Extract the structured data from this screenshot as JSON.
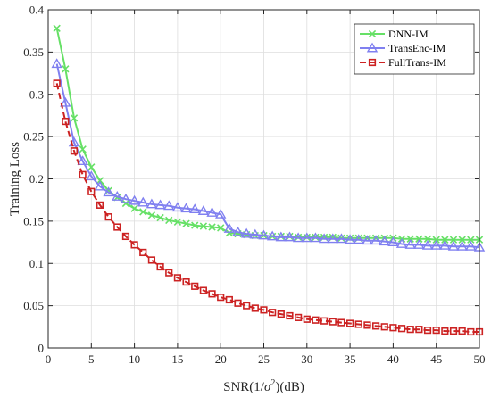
{
  "chart_data": {
    "type": "line",
    "xlabel": "SNR(1/σ²)(dB)",
    "ylabel": "Training Loss",
    "xlim": [
      0,
      50
    ],
    "ylim": [
      0,
      0.4
    ],
    "xticks": [
      0,
      5,
      10,
      15,
      20,
      25,
      30,
      35,
      40,
      45,
      50
    ],
    "yticks": [
      0,
      0.05,
      0.1,
      0.15,
      0.2,
      0.25,
      0.3,
      0.35,
      0.4
    ],
    "xtick_labels": [
      "0",
      "5",
      "10",
      "15",
      "20",
      "25",
      "30",
      "35",
      "40",
      "45",
      "50"
    ],
    "ytick_labels": [
      "0",
      "0.05",
      "0.1",
      "0.15",
      "0.2",
      "0.25",
      "0.3",
      "0.35",
      "0.4"
    ],
    "grid": true,
    "legend_position": "top-right",
    "x": [
      1,
      2,
      3,
      4,
      5,
      6,
      7,
      8,
      9,
      10,
      11,
      12,
      13,
      14,
      15,
      16,
      17,
      18,
      19,
      20,
      21,
      22,
      23,
      24,
      25,
      26,
      27,
      28,
      29,
      30,
      31,
      32,
      33,
      34,
      35,
      36,
      37,
      38,
      39,
      40,
      41,
      42,
      43,
      44,
      45,
      46,
      47,
      48,
      49,
      50
    ],
    "series": [
      {
        "name": "DNN-IM",
        "color": "#66e066",
        "marker": "x",
        "values": [
          0.378,
          0.33,
          0.272,
          0.235,
          0.214,
          0.198,
          0.186,
          0.178,
          0.171,
          0.165,
          0.161,
          0.157,
          0.154,
          0.151,
          0.149,
          0.147,
          0.145,
          0.144,
          0.143,
          0.142,
          0.136,
          0.135,
          0.134,
          0.133,
          0.133,
          0.132,
          0.132,
          0.132,
          0.131,
          0.131,
          0.131,
          0.131,
          0.131,
          0.13,
          0.13,
          0.13,
          0.13,
          0.13,
          0.13,
          0.13,
          0.129,
          0.129,
          0.129,
          0.129,
          0.128,
          0.128,
          0.128,
          0.128,
          0.128,
          0.128
        ]
      },
      {
        "name": "TransEnc-IM",
        "color": "#8080f0",
        "marker": "triangle",
        "values": [
          0.336,
          0.29,
          0.243,
          0.221,
          0.203,
          0.191,
          0.184,
          0.179,
          0.176,
          0.174,
          0.172,
          0.17,
          0.169,
          0.168,
          0.166,
          0.165,
          0.164,
          0.162,
          0.16,
          0.158,
          0.141,
          0.137,
          0.135,
          0.134,
          0.133,
          0.132,
          0.131,
          0.131,
          0.13,
          0.13,
          0.13,
          0.129,
          0.129,
          0.129,
          0.128,
          0.128,
          0.127,
          0.127,
          0.126,
          0.125,
          0.123,
          0.122,
          0.122,
          0.121,
          0.121,
          0.121,
          0.12,
          0.12,
          0.12,
          0.119
        ]
      },
      {
        "name": "FullTrans-IM",
        "color": "#cc2222",
        "marker": "square",
        "values": [
          0.313,
          0.268,
          0.233,
          0.205,
          0.185,
          0.169,
          0.155,
          0.143,
          0.132,
          0.122,
          0.113,
          0.104,
          0.096,
          0.089,
          0.083,
          0.078,
          0.073,
          0.068,
          0.064,
          0.06,
          0.057,
          0.053,
          0.05,
          0.047,
          0.045,
          0.042,
          0.04,
          0.038,
          0.036,
          0.034,
          0.033,
          0.032,
          0.031,
          0.03,
          0.029,
          0.028,
          0.027,
          0.026,
          0.025,
          0.024,
          0.023,
          0.022,
          0.022,
          0.021,
          0.021,
          0.02,
          0.02,
          0.02,
          0.019,
          0.019
        ]
      }
    ]
  }
}
